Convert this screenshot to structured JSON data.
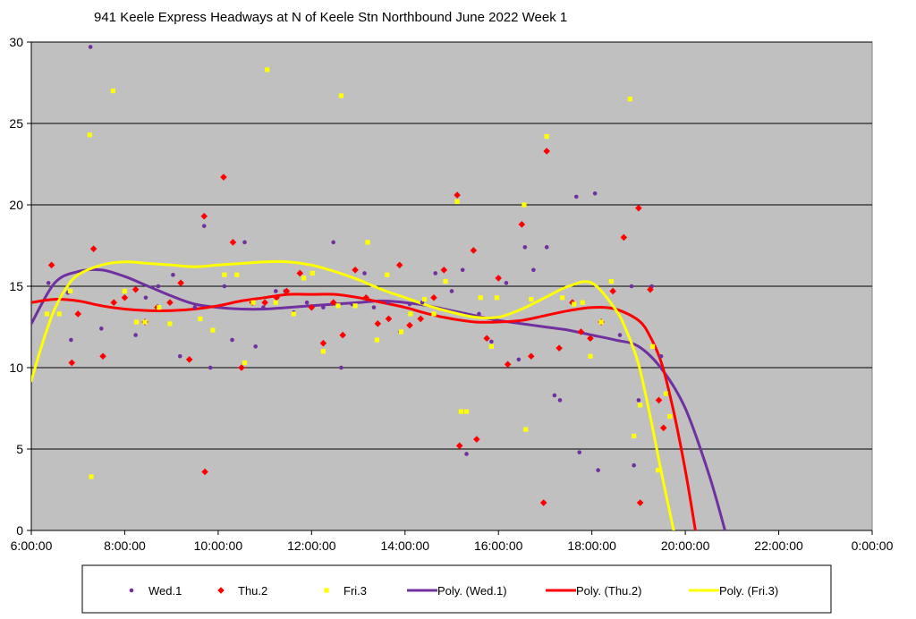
{
  "chart_data": {
    "type": "scatter",
    "title": "941 Keele Express Headways at N of Keele Stn Northbound June 2022  Week 1",
    "xlabel": "",
    "ylabel": "",
    "xlim_hours": [
      6,
      24
    ],
    "ylim": [
      0,
      30
    ],
    "x_tick_labels": [
      "6:00:00",
      "8:00:00",
      "10:00:00",
      "12:00:00",
      "14:00:00",
      "16:00:00",
      "18:00:00",
      "20:00:00",
      "22:00:00",
      "0:00:00"
    ],
    "y_tick_labels": [
      "0",
      "5",
      "10",
      "15",
      "20",
      "25",
      "30"
    ],
    "grid": "horizontal",
    "legend_position": "bottom",
    "plot_background": "#c0c0c0",
    "series": [
      {
        "name": "Wed.1",
        "kind": "points",
        "marker": "circle",
        "color": "#7030a0",
        "x": [
          "6:22",
          "6:47",
          "6:51",
          "7:16",
          "7:30",
          "8:14",
          "8:27",
          "8:43",
          "9:02",
          "9:11",
          "9:30",
          "9:42",
          "9:50",
          "10:08",
          "10:18",
          "10:34",
          "10:48",
          "10:58",
          "11:14",
          "11:26",
          "11:37",
          "11:54",
          "12:15",
          "12:28",
          "12:38",
          "12:52",
          "13:08",
          "13:20",
          "13:38",
          "13:54",
          "14:06",
          "14:22",
          "14:39",
          "15:00",
          "15:14",
          "15:19",
          "15:35",
          "15:51",
          "16:10",
          "16:26",
          "16:34",
          "16:45",
          "17:02",
          "17:12",
          "17:19",
          "17:40",
          "17:44",
          "18:04",
          "18:08",
          "18:36",
          "18:51",
          "18:54",
          "19:00",
          "19:17",
          "19:29"
        ],
        "y": [
          15.2,
          14.6,
          11.7,
          29.7,
          12.4,
          12.0,
          14.3,
          15.0,
          15.7,
          10.7,
          13.7,
          18.7,
          10.0,
          15.0,
          11.7,
          17.7,
          11.3,
          13.7,
          14.7,
          14.7,
          13.4,
          14.0,
          13.7,
          17.7,
          10.0,
          13.9,
          15.8,
          13.7,
          14.0,
          12.2,
          13.9,
          14.0,
          15.8,
          14.7,
          16.0,
          4.7,
          13.3,
          11.6,
          15.2,
          10.5,
          17.4,
          16.0,
          17.4,
          8.3,
          8.0,
          20.5,
          4.8,
          20.7,
          3.7,
          12.0,
          15.0,
          4.0,
          8.0,
          15.0,
          10.7
        ]
      },
      {
        "name": "Thu.2",
        "kind": "points",
        "marker": "diamond",
        "color": "#ff0000",
        "x": [
          "6:26",
          "7:00",
          "6:52",
          "7:20",
          "7:32",
          "7:46",
          "8:00",
          "8:14",
          "8:26",
          "8:42",
          "8:58",
          "9:12",
          "9:23",
          "9:42",
          "9:43",
          "10:07",
          "10:19",
          "10:30",
          "10:44",
          "11:00",
          "11:15",
          "11:28",
          "11:45",
          "12:00",
          "12:15",
          "12:28",
          "12:40",
          "12:56",
          "13:10",
          "13:25",
          "13:39",
          "13:53",
          "14:06",
          "14:20",
          "14:37",
          "14:50",
          "15:07",
          "15:10",
          "15:28",
          "15:32",
          "15:45",
          "16:00",
          "16:12",
          "16:30",
          "16:42",
          "16:58",
          "17:02",
          "17:18",
          "17:35",
          "17:46",
          "17:58",
          "18:12",
          "18:27",
          "18:41",
          "19:00",
          "19:02",
          "19:15",
          "19:26",
          "19:32"
        ],
        "y": [
          16.3,
          13.3,
          10.3,
          17.3,
          10.7,
          14.0,
          14.3,
          14.8,
          12.8,
          13.7,
          14.0,
          15.2,
          10.5,
          19.3,
          3.6,
          21.7,
          17.7,
          10.0,
          14.0,
          14.0,
          14.3,
          14.7,
          15.8,
          13.7,
          11.5,
          14.0,
          12.0,
          16.0,
          14.3,
          12.7,
          13.0,
          16.3,
          12.6,
          13.0,
          14.3,
          16.0,
          20.6,
          5.2,
          17.2,
          5.6,
          11.8,
          15.5,
          10.2,
          18.8,
          10.7,
          1.7,
          23.3,
          11.2,
          14.0,
          12.2,
          11.8,
          12.8,
          14.7,
          18.0,
          19.8,
          1.7,
          14.8,
          8.0,
          6.3
        ]
      },
      {
        "name": "Fri.3",
        "kind": "points",
        "marker": "square",
        "color": "#ffff00",
        "x": [
          "6:20",
          "6:36",
          "6:50",
          "7:15",
          "7:17",
          "7:45",
          "8:00",
          "8:15",
          "8:26",
          "8:44",
          "8:58",
          "9:37",
          "9:53",
          "10:08",
          "10:24",
          "10:34",
          "10:45",
          "11:03",
          "11:14",
          "11:37",
          "11:50",
          "12:01",
          "12:15",
          "12:34",
          "12:38",
          "12:56",
          "13:12",
          "13:24",
          "13:37",
          "13:55",
          "14:07",
          "14:25",
          "14:37",
          "14:52",
          "15:07",
          "15:12",
          "15:19",
          "15:37",
          "15:51",
          "15:58",
          "16:33",
          "16:35",
          "16:42",
          "17:02",
          "17:22",
          "17:37",
          "17:48",
          "17:58",
          "18:12",
          "18:25",
          "18:49",
          "18:54",
          "19:02",
          "19:18",
          "19:25",
          "19:35",
          "19:40"
        ],
        "y": [
          13.3,
          13.3,
          14.7,
          24.3,
          3.3,
          27.0,
          14.7,
          12.8,
          12.8,
          13.7,
          12.7,
          13.0,
          12.3,
          15.7,
          15.7,
          10.3,
          14.0,
          28.3,
          14.0,
          13.3,
          15.5,
          15.8,
          11.0,
          13.8,
          26.7,
          13.8,
          17.7,
          11.7,
          15.7,
          12.2,
          13.3,
          14.2,
          13.3,
          15.3,
          20.2,
          7.3,
          7.3,
          14.3,
          11.3,
          14.3,
          20.0,
          6.2,
          14.2,
          24.2,
          14.3,
          13.9,
          14.0,
          10.7,
          12.8,
          15.3,
          26.5,
          5.8,
          7.7,
          11.3,
          3.7,
          8.4,
          7.0
        ]
      },
      {
        "name": "Poly. (Wed.1)",
        "kind": "trendline",
        "color": "#7030a0",
        "x": [
          "6:00",
          "6:30",
          "7:00",
          "7:30",
          "8:00",
          "8:30",
          "9:00",
          "9:30",
          "10:00",
          "10:30",
          "11:00",
          "11:30",
          "12:00",
          "12:30",
          "13:00",
          "13:30",
          "14:00",
          "14:30",
          "15:00",
          "15:30",
          "16:00",
          "16:30",
          "17:00",
          "17:30",
          "18:00",
          "18:30",
          "19:00",
          "19:30",
          "20:00",
          "20:30",
          "20:51"
        ],
        "y": [
          12.7,
          15.2,
          15.9,
          16.0,
          15.6,
          15.0,
          14.4,
          13.9,
          13.7,
          13.6,
          13.6,
          13.7,
          13.8,
          13.9,
          14.0,
          14.1,
          14.0,
          13.8,
          13.5,
          13.2,
          12.9,
          12.7,
          12.5,
          12.3,
          12.0,
          11.7,
          11.3,
          9.9,
          7.5,
          3.5,
          0.0
        ]
      },
      {
        "name": "Poly. (Thu.2)",
        "kind": "trendline",
        "color": "#ff0000",
        "x": [
          "6:00",
          "6:30",
          "7:00",
          "7:30",
          "8:00",
          "8:30",
          "9:00",
          "9:30",
          "10:00",
          "10:30",
          "11:00",
          "11:30",
          "12:00",
          "12:30",
          "13:00",
          "13:30",
          "14:00",
          "14:30",
          "15:00",
          "15:30",
          "16:00",
          "16:30",
          "17:00",
          "17:30",
          "18:00",
          "18:30",
          "19:00",
          "19:15",
          "19:30",
          "19:45",
          "20:00",
          "20:13"
        ],
        "y": [
          14.0,
          14.2,
          14.1,
          13.8,
          13.6,
          13.5,
          13.5,
          13.6,
          13.8,
          14.1,
          14.3,
          14.5,
          14.5,
          14.5,
          14.3,
          14.0,
          13.7,
          13.3,
          13.0,
          12.8,
          12.8,
          12.9,
          13.2,
          13.5,
          13.7,
          13.6,
          12.9,
          11.9,
          10.2,
          7.3,
          3.7,
          0.0
        ]
      },
      {
        "name": "Poly. (Fri.3)",
        "kind": "trendline",
        "color": "#ffff00",
        "x": [
          "6:00",
          "6:15",
          "6:30",
          "6:45",
          "7:00",
          "7:30",
          "8:00",
          "8:30",
          "9:00",
          "9:30",
          "10:00",
          "10:30",
          "11:00",
          "11:30",
          "12:00",
          "12:30",
          "13:00",
          "13:30",
          "14:00",
          "14:30",
          "15:00",
          "15:30",
          "16:00",
          "16:30",
          "17:00",
          "17:30",
          "18:00",
          "18:30",
          "18:45",
          "19:00",
          "19:15",
          "19:30",
          "19:45"
        ],
        "y": [
          9.2,
          11.6,
          13.6,
          14.9,
          15.7,
          16.3,
          16.5,
          16.4,
          16.3,
          16.2,
          16.3,
          16.4,
          16.5,
          16.5,
          16.3,
          15.9,
          15.4,
          14.8,
          14.3,
          13.8,
          13.4,
          13.1,
          13.1,
          13.6,
          14.3,
          15.0,
          15.2,
          13.6,
          12.2,
          10.2,
          7.0,
          3.4,
          0.0
        ]
      }
    ]
  }
}
